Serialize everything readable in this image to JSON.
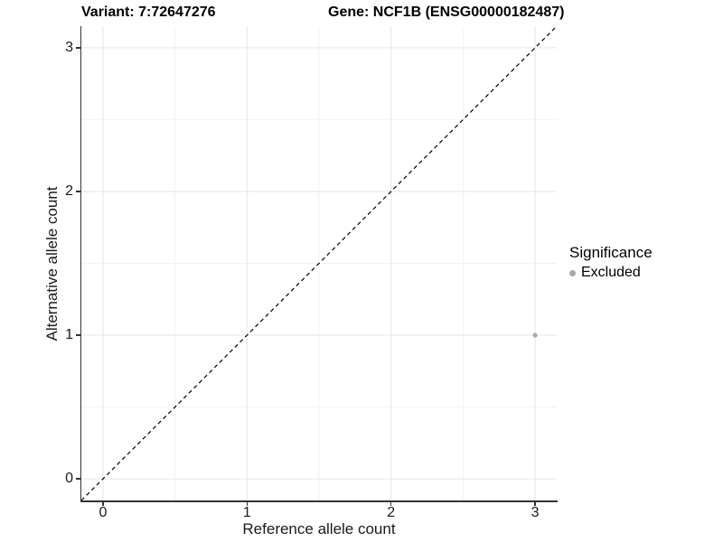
{
  "header": {
    "variant_label": "Variant: 7:72647276",
    "gene_label": "Gene: NCF1B (ENSG00000182487)"
  },
  "chart_data": {
    "type": "scatter",
    "title": "Variant: 7:72647276    Gene: NCF1B (ENSG00000182487)",
    "xlabel": "Reference allele count",
    "ylabel": "Alternative allele count",
    "xlim": [
      -0.15,
      3.15
    ],
    "ylim": [
      -0.15,
      3.15
    ],
    "x_ticks": [
      0,
      1,
      2,
      3
    ],
    "y_ticks": [
      0,
      1,
      2,
      3
    ],
    "minor_gridlines": [
      0.5,
      1.5,
      2.5
    ],
    "grid": "major+minor",
    "identity_line": {
      "style": "dashed",
      "color": "#000000",
      "from": -0.15,
      "to": 3.15
    },
    "series": [
      {
        "name": "Excluded",
        "color": "#a8a8a8",
        "points": [
          {
            "x": 3,
            "y": 1
          }
        ]
      }
    ],
    "legend": {
      "title": "Significance",
      "position": "right",
      "items": [
        {
          "label": "Excluded",
          "color": "#a8a8a8"
        }
      ]
    }
  },
  "colors": {
    "background": "#ffffff",
    "axis_line": "#333333",
    "grid_major": "#e6e6e6",
    "grid_minor": "#f2f2f2",
    "text": "#1a1a1a",
    "point": "#a8a8a8"
  }
}
